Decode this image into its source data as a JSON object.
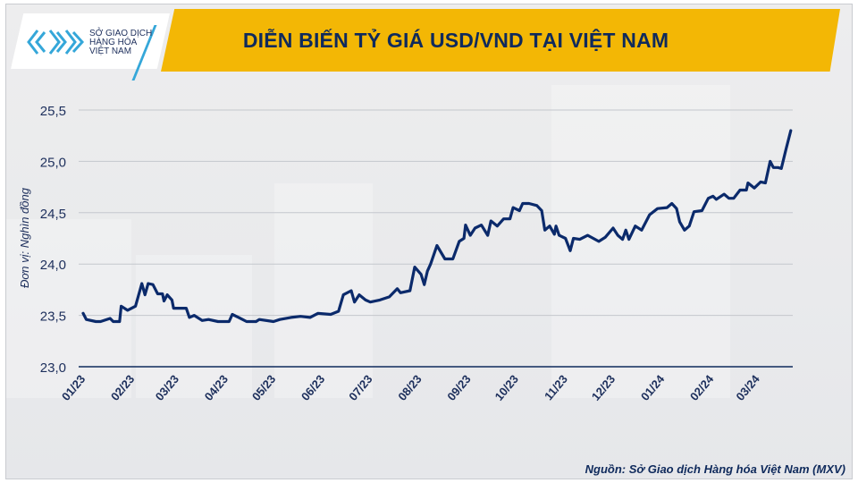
{
  "header": {
    "logo_lines": [
      "SỞ GIAO DỊCH",
      "HÀNG HÓA",
      "VIỆT NAM"
    ],
    "title": "DIỄN BIẾN TỶ GIÁ USD/VND TẠI VIỆT NAM"
  },
  "source": "Nguồn: Sở Giao dịch Hàng hóa Việt Nam (MXV)",
  "colors": {
    "line": "#0b2a6b",
    "banner": "#f3b705",
    "title": "#0f2a5c",
    "logo_accent": "#35a7d9"
  },
  "chart_data": {
    "type": "line",
    "title": "DIỄN BIẾN TỶ GIÁ USD/VND TẠI VIỆT NAM",
    "xlabel": "",
    "ylabel": "Đơn vị: Nghìn đồng",
    "ylim": [
      23.0,
      25.5
    ],
    "yticks": [
      "23,0",
      "23,5",
      "24,0",
      "24,5",
      "25,0",
      "25,5"
    ],
    "ytick_values": [
      23.0,
      23.5,
      24.0,
      24.5,
      25.0,
      25.5
    ],
    "xticks": [
      "01/23",
      "02/23",
      "03/23",
      "04/23",
      "05/23",
      "06/23",
      "07/23",
      "08/23",
      "09/23",
      "10/23",
      "11/23",
      "12/23",
      "01/24",
      "02/24",
      "03/24"
    ],
    "xtick_dates": [
      "2023-01-01",
      "2023-02-01",
      "2023-03-01",
      "2023-04-01",
      "2023-05-01",
      "2023-06-01",
      "2023-07-01",
      "2023-08-01",
      "2023-09-01",
      "2023-10-01",
      "2023-11-01",
      "2023-12-01",
      "2024-01-01",
      "2024-02-01",
      "2024-03-01"
    ],
    "grid": "horizontal",
    "series": [
      {
        "points": [
          [
            "2023-01-01",
            23.52
          ],
          [
            "2023-01-03",
            23.46
          ],
          [
            "2023-01-09",
            23.44
          ],
          [
            "2023-01-12",
            23.44
          ],
          [
            "2023-01-18",
            23.47
          ],
          [
            "2023-01-20",
            23.44
          ],
          [
            "2023-01-24",
            23.44
          ],
          [
            "2023-01-25",
            23.59
          ],
          [
            "2023-01-29",
            23.55
          ],
          [
            "2023-02-03",
            23.59
          ],
          [
            "2023-02-07",
            23.81
          ],
          [
            "2023-02-09",
            23.7
          ],
          [
            "2023-02-11",
            23.81
          ],
          [
            "2023-02-14",
            23.8
          ],
          [
            "2023-02-17",
            23.71
          ],
          [
            "2023-02-20",
            23.71
          ],
          [
            "2023-02-21",
            23.64
          ],
          [
            "2023-02-23",
            23.7
          ],
          [
            "2023-02-26",
            23.65
          ],
          [
            "2023-02-27",
            23.57
          ],
          [
            "2023-03-07",
            23.57
          ],
          [
            "2023-03-09",
            23.48
          ],
          [
            "2023-03-12",
            23.5
          ],
          [
            "2023-03-17",
            23.45
          ],
          [
            "2023-03-21",
            23.46
          ],
          [
            "2023-03-27",
            23.44
          ],
          [
            "2023-04-03",
            23.44
          ],
          [
            "2023-04-05",
            23.51
          ],
          [
            "2023-04-09",
            23.48
          ],
          [
            "2023-04-14",
            23.44
          ],
          [
            "2023-04-20",
            23.44
          ],
          [
            "2023-04-22",
            23.46
          ],
          [
            "2023-05-01",
            23.44
          ],
          [
            "2023-05-05",
            23.46
          ],
          [
            "2023-05-12",
            23.48
          ],
          [
            "2023-05-18",
            23.49
          ],
          [
            "2023-05-24",
            23.48
          ],
          [
            "2023-05-29",
            23.52
          ],
          [
            "2023-06-06",
            23.51
          ],
          [
            "2023-06-11",
            23.54
          ],
          [
            "2023-06-14",
            23.7
          ],
          [
            "2023-06-19",
            23.74
          ],
          [
            "2023-06-21",
            23.63
          ],
          [
            "2023-06-24",
            23.7
          ],
          [
            "2023-06-28",
            23.65
          ],
          [
            "2023-07-01",
            23.63
          ],
          [
            "2023-07-07",
            23.65
          ],
          [
            "2023-07-13",
            23.68
          ],
          [
            "2023-07-18",
            23.76
          ],
          [
            "2023-07-20",
            23.72
          ],
          [
            "2023-07-26",
            23.74
          ],
          [
            "2023-07-29",
            23.97
          ],
          [
            "2023-08-02",
            23.9
          ],
          [
            "2023-08-04",
            23.8
          ],
          [
            "2023-08-06",
            23.93
          ],
          [
            "2023-08-08",
            24.0
          ],
          [
            "2023-08-12",
            24.18
          ],
          [
            "2023-08-17",
            24.05
          ],
          [
            "2023-08-22",
            24.05
          ],
          [
            "2023-08-26",
            24.22
          ],
          [
            "2023-08-29",
            24.25
          ],
          [
            "2023-08-30",
            24.38
          ],
          [
            "2023-09-02",
            24.28
          ],
          [
            "2023-09-05",
            24.35
          ],
          [
            "2023-09-09",
            24.38
          ],
          [
            "2023-09-13",
            24.28
          ],
          [
            "2023-09-15",
            24.42
          ],
          [
            "2023-09-19",
            24.37
          ],
          [
            "2023-09-23",
            24.44
          ],
          [
            "2023-09-27",
            24.44
          ],
          [
            "2023-09-29",
            24.55
          ],
          [
            "2023-10-03",
            24.52
          ],
          [
            "2023-10-05",
            24.59
          ],
          [
            "2023-10-09",
            24.59
          ],
          [
            "2023-10-14",
            24.57
          ],
          [
            "2023-10-17",
            24.52
          ],
          [
            "2023-10-19",
            24.33
          ],
          [
            "2023-10-22",
            24.37
          ],
          [
            "2023-10-25",
            24.29
          ],
          [
            "2023-10-26",
            24.37
          ],
          [
            "2023-10-28",
            24.28
          ],
          [
            "2023-11-01",
            24.25
          ],
          [
            "2023-11-04",
            24.13
          ],
          [
            "2023-11-06",
            24.25
          ],
          [
            "2023-11-10",
            24.24
          ],
          [
            "2023-11-15",
            24.28
          ],
          [
            "2023-11-22",
            24.22
          ],
          [
            "2023-11-26",
            24.26
          ],
          [
            "2023-12-01",
            24.35
          ],
          [
            "2023-12-04",
            24.28
          ],
          [
            "2023-12-07",
            24.24
          ],
          [
            "2023-12-09",
            24.33
          ],
          [
            "2023-12-11",
            24.24
          ],
          [
            "2023-12-15",
            24.37
          ],
          [
            "2023-12-19",
            24.33
          ],
          [
            "2023-12-24",
            24.48
          ],
          [
            "2023-12-29",
            24.54
          ],
          [
            "2024-01-04",
            24.55
          ],
          [
            "2024-01-07",
            24.59
          ],
          [
            "2024-01-10",
            24.54
          ],
          [
            "2024-01-12",
            24.41
          ],
          [
            "2024-01-15",
            24.33
          ],
          [
            "2024-01-18",
            24.37
          ],
          [
            "2024-01-21",
            24.51
          ],
          [
            "2024-01-26",
            24.52
          ],
          [
            "2024-01-30",
            24.64
          ],
          [
            "2024-02-02",
            24.66
          ],
          [
            "2024-02-04",
            24.63
          ],
          [
            "2024-02-09",
            24.68
          ],
          [
            "2024-02-12",
            24.64
          ],
          [
            "2024-02-15",
            24.64
          ],
          [
            "2024-02-19",
            24.72
          ],
          [
            "2024-02-23",
            24.72
          ],
          [
            "2024-02-24",
            24.79
          ],
          [
            "2024-02-28",
            24.74
          ],
          [
            "2024-03-03",
            24.8
          ],
          [
            "2024-03-06",
            24.79
          ],
          [
            "2024-03-09",
            25.0
          ],
          [
            "2024-03-11",
            24.94
          ],
          [
            "2024-03-14",
            24.94
          ],
          [
            "2024-03-16",
            24.93
          ],
          [
            "2024-03-19",
            25.12
          ],
          [
            "2024-03-22",
            25.3
          ]
        ]
      }
    ]
  }
}
